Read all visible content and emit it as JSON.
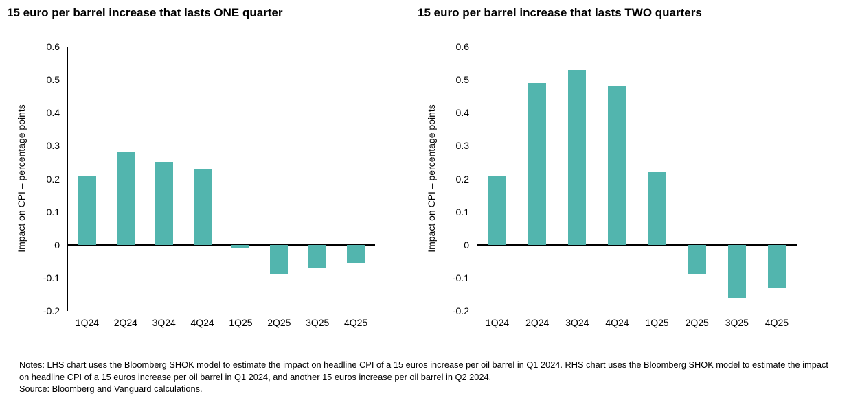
{
  "colors": {
    "bar": "#52b5ae",
    "axis": "#000000",
    "text": "#000000",
    "background": "#ffffff"
  },
  "chart_data": [
    {
      "type": "bar",
      "title": "15 euro per barrel increase that lasts ONE quarter",
      "ylabel": "Impact on CPI – percentage points",
      "xlabel": "",
      "categories": [
        "1Q24",
        "2Q24",
        "3Q24",
        "4Q24",
        "1Q25",
        "2Q25",
        "3Q25",
        "4Q25"
      ],
      "values": [
        0.21,
        0.28,
        0.25,
        0.23,
        -0.01,
        -0.09,
        -0.07,
        -0.055
      ],
      "ylim": [
        -0.2,
        0.6
      ],
      "yticks": [
        0.6,
        0.5,
        0.4,
        0.3,
        0.2,
        0.1,
        0,
        -0.1,
        -0.2
      ],
      "ytick_labels": [
        "0.6",
        "0.5",
        "0.4",
        "0.3",
        "0.2",
        "0.1",
        "0",
        "-0.1",
        "-0.2"
      ],
      "grid": false,
      "legend": "none",
      "bar_color": "#52b5ae"
    },
    {
      "type": "bar",
      "title": "15 euro per barrel increase that lasts TWO quarters",
      "ylabel": "Impact on CPI – percentage points",
      "xlabel": "",
      "categories": [
        "1Q24",
        "2Q24",
        "3Q24",
        "4Q24",
        "1Q25",
        "2Q25",
        "3Q25",
        "4Q25"
      ],
      "values": [
        0.21,
        0.49,
        0.53,
        0.48,
        0.22,
        -0.09,
        -0.16,
        -0.13
      ],
      "ylim": [
        -0.2,
        0.6
      ],
      "yticks": [
        0.6,
        0.5,
        0.4,
        0.3,
        0.2,
        0.1,
        0,
        -0.1,
        -0.2
      ],
      "ytick_labels": [
        "0.6",
        "0.5",
        "0.4",
        "0.3",
        "0.2",
        "0.1",
        "0",
        "-0.1",
        "-0.2"
      ],
      "grid": false,
      "legend": "none",
      "bar_color": "#52b5ae"
    }
  ],
  "notes": {
    "notes_text": "Notes: LHS chart uses the Bloomberg SHOK model to estimate the impact on headline CPI of a 15 euros increase per oil barrel in Q1 2024. RHS chart uses the Bloomberg SHOK model to estimate the impact on headline CPI of a 15 euros increase per oil barrel in Q1 2024, and another 15 euros increase per oil barrel in Q2 2024.",
    "source_text": "Source: Bloomberg and Vanguard calculations."
  }
}
